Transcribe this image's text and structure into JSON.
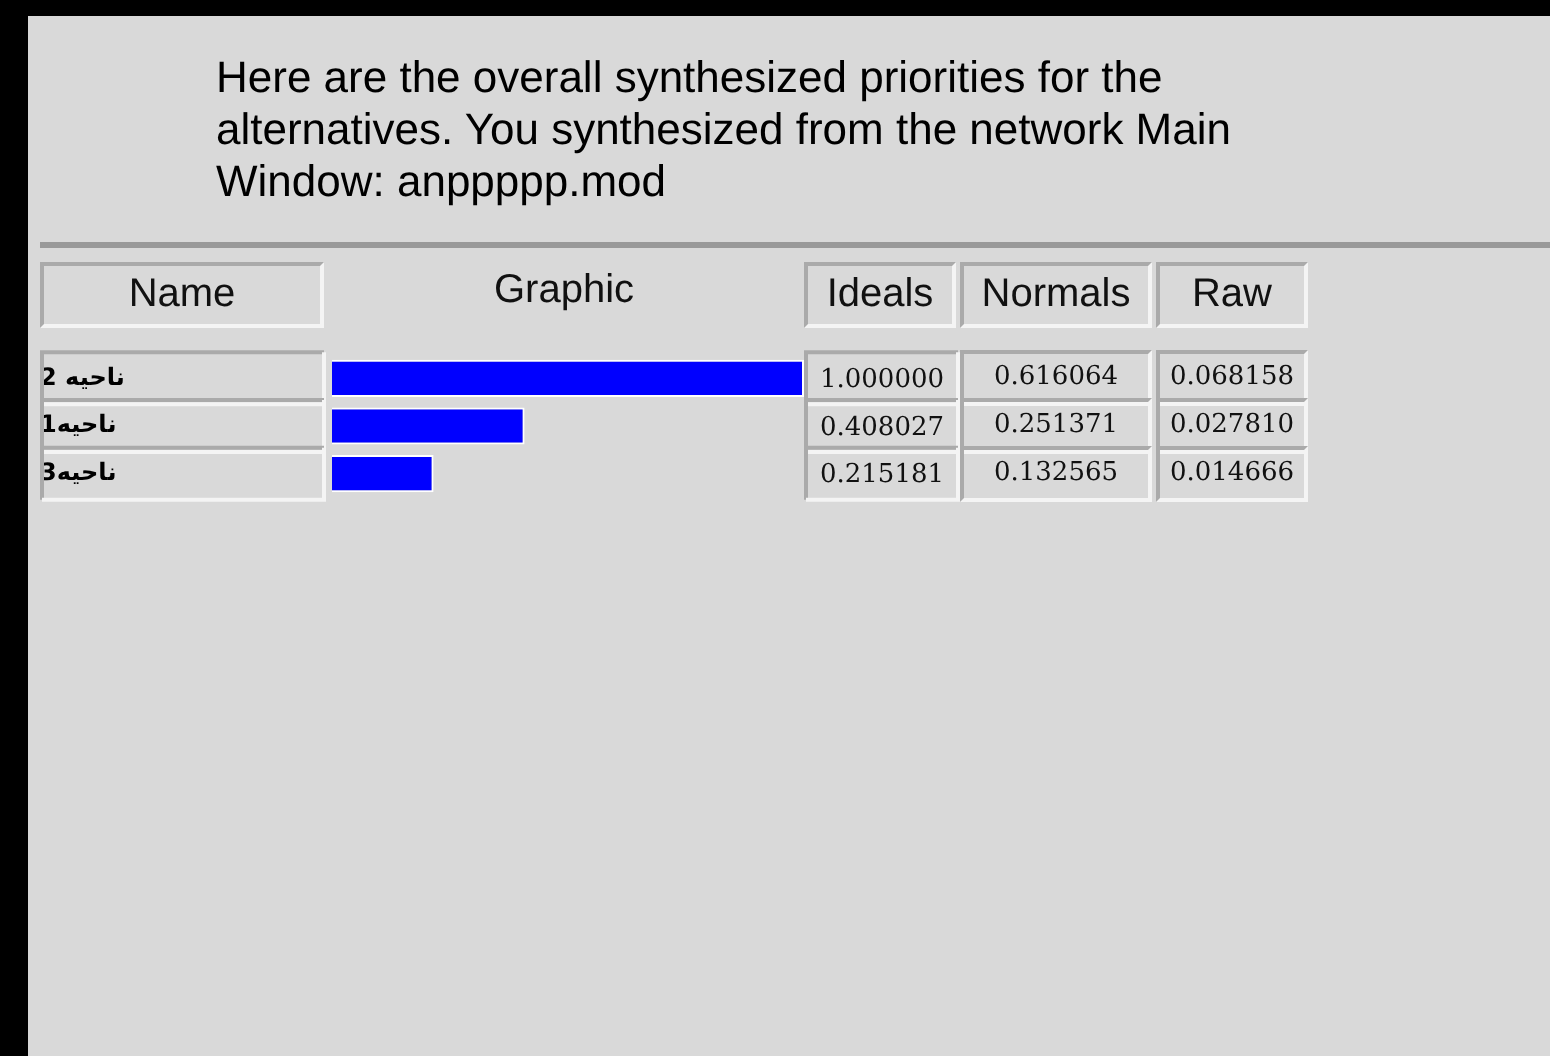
{
  "chart_data": {
    "type": "bar",
    "orientation": "horizontal",
    "title": "Here are the overall synthesized priorities for the alternatives.  You synthesized from the network Main Window: anppppp.mod",
    "categories": [
      "ناحیه 2",
      "ناحیه1",
      "ناحیه3"
    ],
    "values": [
      1.0,
      0.408027,
      0.215181
    ],
    "value_labels": [
      "1.000000",
      "0.408027",
      "0.215181"
    ],
    "color": "#0000ff",
    "legend": false,
    "annotations": [
      "Name",
      "Graphic",
      "Ideals",
      "Normals",
      "Raw",
      "0.616064",
      "0.251371",
      "0.132565",
      "0.068158",
      "0.027810",
      "0.014666"
    ]
  }
}
